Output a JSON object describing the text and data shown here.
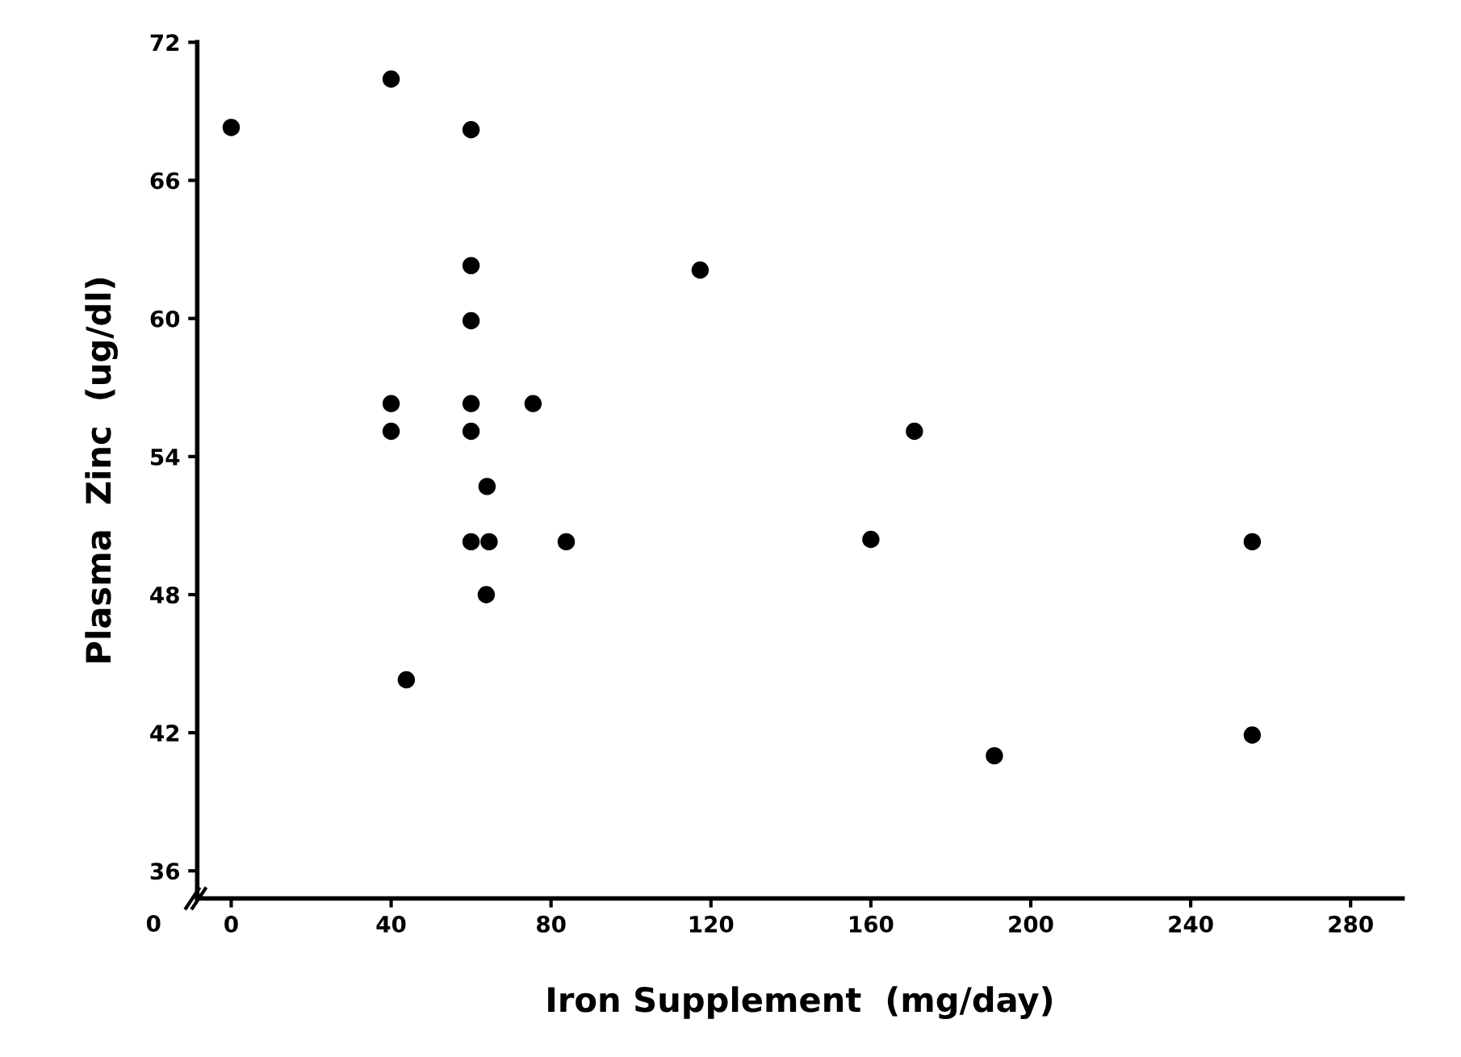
{
  "chart_data": {
    "type": "scatter",
    "xlabel": "Iron Supplement  (mg/day)",
    "ylabel": "Plasma  Zinc  (ug/dl)",
    "marker": "circle",
    "grid": false,
    "legend": false,
    "xlim": [
      -8.5,
      293
    ],
    "xticks": [
      0,
      40,
      80,
      120,
      160,
      200,
      240,
      280
    ],
    "ylim": [
      34.8,
      72
    ],
    "yticks": [
      36,
      42,
      48,
      54,
      60,
      66,
      72
    ],
    "annotations": [
      "0"
    ],
    "series": [
      {
        "color": "#000000",
        "x": [
          0,
          40,
          60,
          60,
          60,
          40,
          40,
          60,
          60,
          75.5,
          64,
          60,
          64.5,
          83.8,
          63.8,
          43.8,
          117.3,
          170.9,
          160,
          190.9,
          255.4,
          255.4
        ],
        "values": [
          68.3,
          70.4,
          68.2,
          62.3,
          59.9,
          56.3,
          55.1,
          56.3,
          55.1,
          56.3,
          52.7,
          50.3,
          50.3,
          50.3,
          48.0,
          44.3,
          62.1,
          55.1,
          50.4,
          41.0,
          50.3,
          41.9
        ]
      }
    ]
  }
}
